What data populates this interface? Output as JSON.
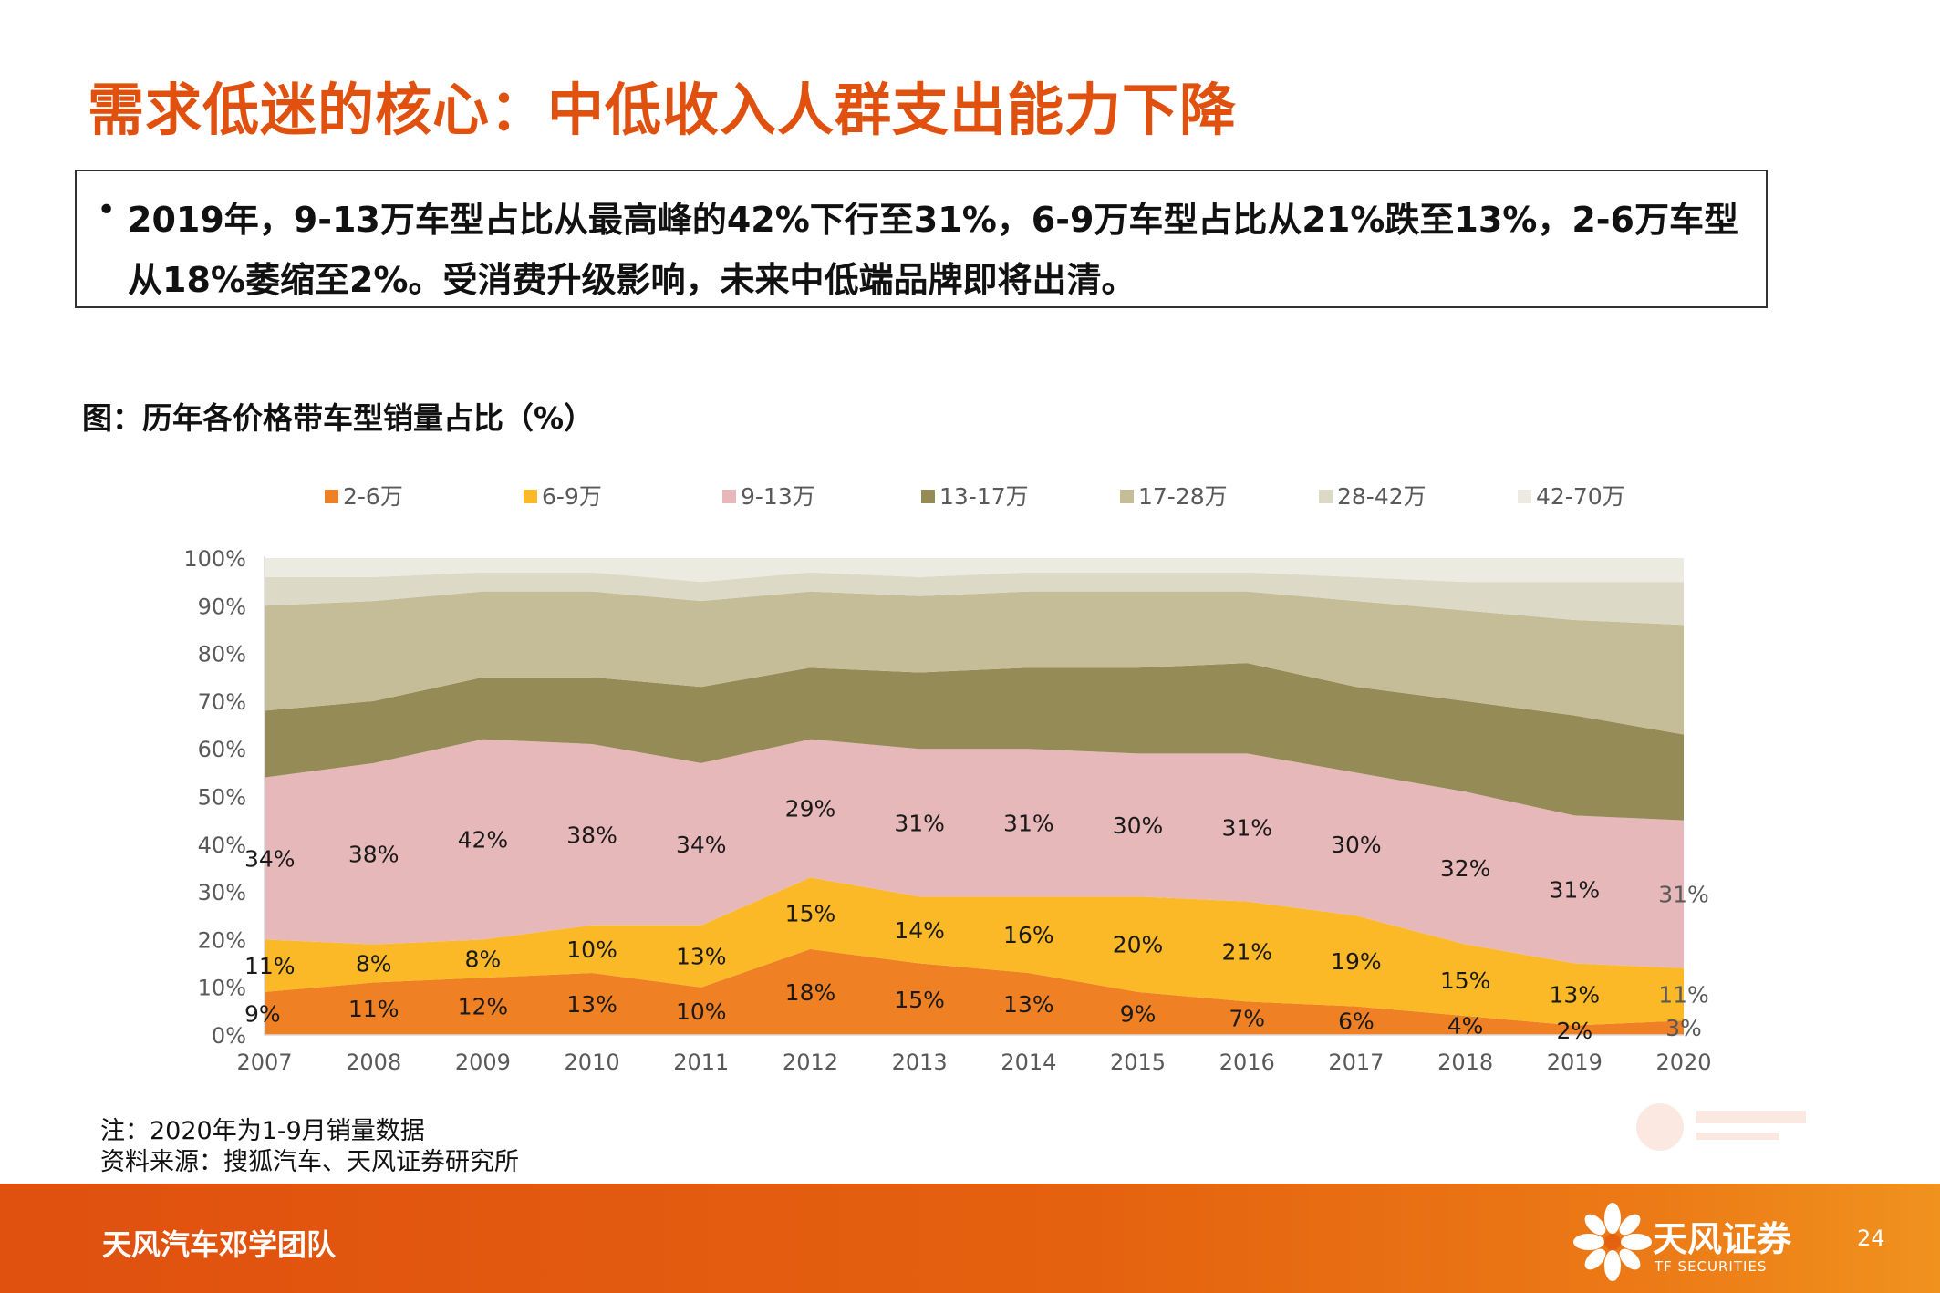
{
  "title": "需求低迷的核心：中低收入人群支出能力下降",
  "summary": {
    "bullet": "•",
    "text": "2019年，9-13万车型占比从最高峰的42%下行至31%，6-9万车型占比从21%跌至13%，2-6万车型从18%萎缩至2%。受消费升级影响，未来中低端品牌即将出清。"
  },
  "figure_caption": "图：历年各价格带车型销量占比（%）",
  "notes": {
    "note": "注：2020年为1-9月销量数据",
    "source": "资料来源：搜狐汽车、天风证券研究所"
  },
  "footer": {
    "team": "天风汽车邓学团队",
    "brand": "天风证券",
    "brand_en": "TF SECURITIES",
    "page": "24"
  },
  "chart_data": {
    "type": "area",
    "stacked": true,
    "x": [
      "2007",
      "2008",
      "2009",
      "2010",
      "2011",
      "2012",
      "2013",
      "2014",
      "2015",
      "2016",
      "2017",
      "2018",
      "2019",
      "2020"
    ],
    "ylim": [
      0,
      100
    ],
    "yticks": [
      "0%",
      "10%",
      "20%",
      "30%",
      "40%",
      "50%",
      "60%",
      "70%",
      "80%",
      "90%",
      "100%"
    ],
    "legend_position": "top",
    "grid": false,
    "series": [
      {
        "name": "2-6万",
        "color": "#f08024",
        "values": [
          9,
          11,
          12,
          13,
          10,
          18,
          15,
          13,
          9,
          7,
          6,
          4,
          2,
          3
        ],
        "labels": [
          "9%",
          "11%",
          "12%",
          "13%",
          "10%",
          "18%",
          "15%",
          "13%",
          "9%",
          "7%",
          "6%",
          "4%",
          "2%",
          "3%"
        ]
      },
      {
        "name": "6-9万",
        "color": "#fbb827",
        "values": [
          11,
          8,
          8,
          10,
          13,
          15,
          14,
          16,
          20,
          21,
          19,
          15,
          13,
          11
        ],
        "labels": [
          "11%",
          "8%",
          "8%",
          "10%",
          "13%",
          "15%",
          "14%",
          "16%",
          "20%",
          "21%",
          "19%",
          "15%",
          "13%",
          "11%"
        ]
      },
      {
        "name": "9-13万",
        "color": "#e7b8b9",
        "values": [
          34,
          38,
          42,
          38,
          34,
          29,
          31,
          31,
          30,
          31,
          30,
          32,
          31,
          31
        ],
        "labels": [
          "34%",
          "38%",
          "42%",
          "38%",
          "34%",
          "29%",
          "31%",
          "31%",
          "30%",
          "31%",
          "30%",
          "32%",
          "31%",
          "31%"
        ]
      },
      {
        "name": "13-17万",
        "color": "#948b56",
        "values": [
          14,
          13,
          13,
          14,
          16,
          15,
          16,
          17,
          18,
          19,
          18,
          19,
          21,
          18
        ],
        "labels": []
      },
      {
        "name": "17-28万",
        "color": "#c5bd98",
        "values": [
          22,
          21,
          18,
          18,
          18,
          16,
          16,
          16,
          16,
          15,
          18,
          19,
          20,
          23
        ],
        "labels": []
      },
      {
        "name": "28-42万",
        "color": "#dcdac6",
        "values": [
          6,
          5,
          4,
          4,
          4,
          4,
          4,
          4,
          4,
          4,
          5,
          6,
          8,
          9
        ],
        "labels": []
      },
      {
        "name": "42-70万",
        "color": "#ecebe1",
        "values": [
          4,
          4,
          3,
          3,
          5,
          3,
          4,
          3,
          3,
          3,
          4,
          5,
          5,
          5
        ],
        "labels": []
      }
    ]
  }
}
